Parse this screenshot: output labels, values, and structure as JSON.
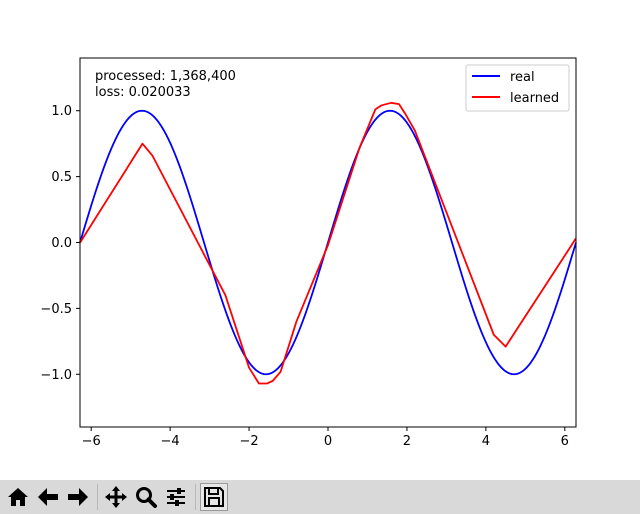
{
  "chart_data": {
    "type": "line",
    "title": "",
    "xlabel": "",
    "ylabel": "",
    "xlim": [
      -6.2832,
      6.2832
    ],
    "ylim": [
      -1.4,
      1.4
    ],
    "grid": false,
    "legend_position": "top-right",
    "xticks": [
      -6,
      -4,
      -2,
      0,
      2,
      4,
      6
    ],
    "xtick_labels": [
      "−6",
      "−4",
      "−2",
      "0",
      "2",
      "4",
      "6"
    ],
    "yticks": [
      1.0,
      0.5,
      0.0,
      -0.5,
      -1.0
    ],
    "ytick_labels": [
      "1.0",
      "0.5",
      "0.0",
      "−0.5",
      "−1.0"
    ],
    "annotations": [
      "processed: 1,368,400",
      "loss: 0.020033"
    ],
    "series": [
      {
        "name": "real",
        "color": "#0000ff",
        "function": "sin(x)",
        "x": [
          -6.283,
          -5.498,
          -4.712,
          -3.927,
          -3.142,
          -2.356,
          -1.571,
          -0.785,
          0.0,
          0.785,
          1.571,
          2.356,
          3.142,
          3.927,
          4.712,
          5.498,
          6.283
        ],
        "y": [
          0.0,
          0.707,
          1.0,
          0.707,
          0.0,
          -0.707,
          -1.0,
          -0.707,
          0.0,
          0.707,
          1.0,
          0.707,
          0.0,
          -0.707,
          -1.0,
          -0.707,
          0.0
        ]
      },
      {
        "name": "learned",
        "color": "#ff0000",
        "x": [
          -6.28,
          -4.7,
          -4.45,
          -2.6,
          -2.0,
          -1.75,
          -1.55,
          -1.4,
          -1.2,
          -0.8,
          0.0,
          0.8,
          1.2,
          1.35,
          1.6,
          1.8,
          1.95,
          2.2,
          4.2,
          4.5,
          6.28
        ],
        "y": [
          0.0,
          0.75,
          0.66,
          -0.4,
          -0.95,
          -1.07,
          -1.07,
          -1.05,
          -0.98,
          -0.6,
          -0.02,
          0.72,
          1.01,
          1.04,
          1.06,
          1.05,
          0.98,
          0.85,
          -0.7,
          -0.79,
          0.03
        ]
      }
    ]
  },
  "toolbar": {
    "buttons": [
      {
        "name": "home-button",
        "icon": "home-icon"
      },
      {
        "name": "back-button",
        "icon": "arrow-left-icon"
      },
      {
        "name": "forward-button",
        "icon": "arrow-right-icon"
      },
      {
        "name": "pan-button",
        "icon": "move-icon"
      },
      {
        "name": "zoom-button",
        "icon": "magnifier-icon"
      },
      {
        "name": "subplots-button",
        "icon": "sliders-icon"
      },
      {
        "name": "save-button",
        "icon": "floppy-disk-icon"
      }
    ]
  }
}
